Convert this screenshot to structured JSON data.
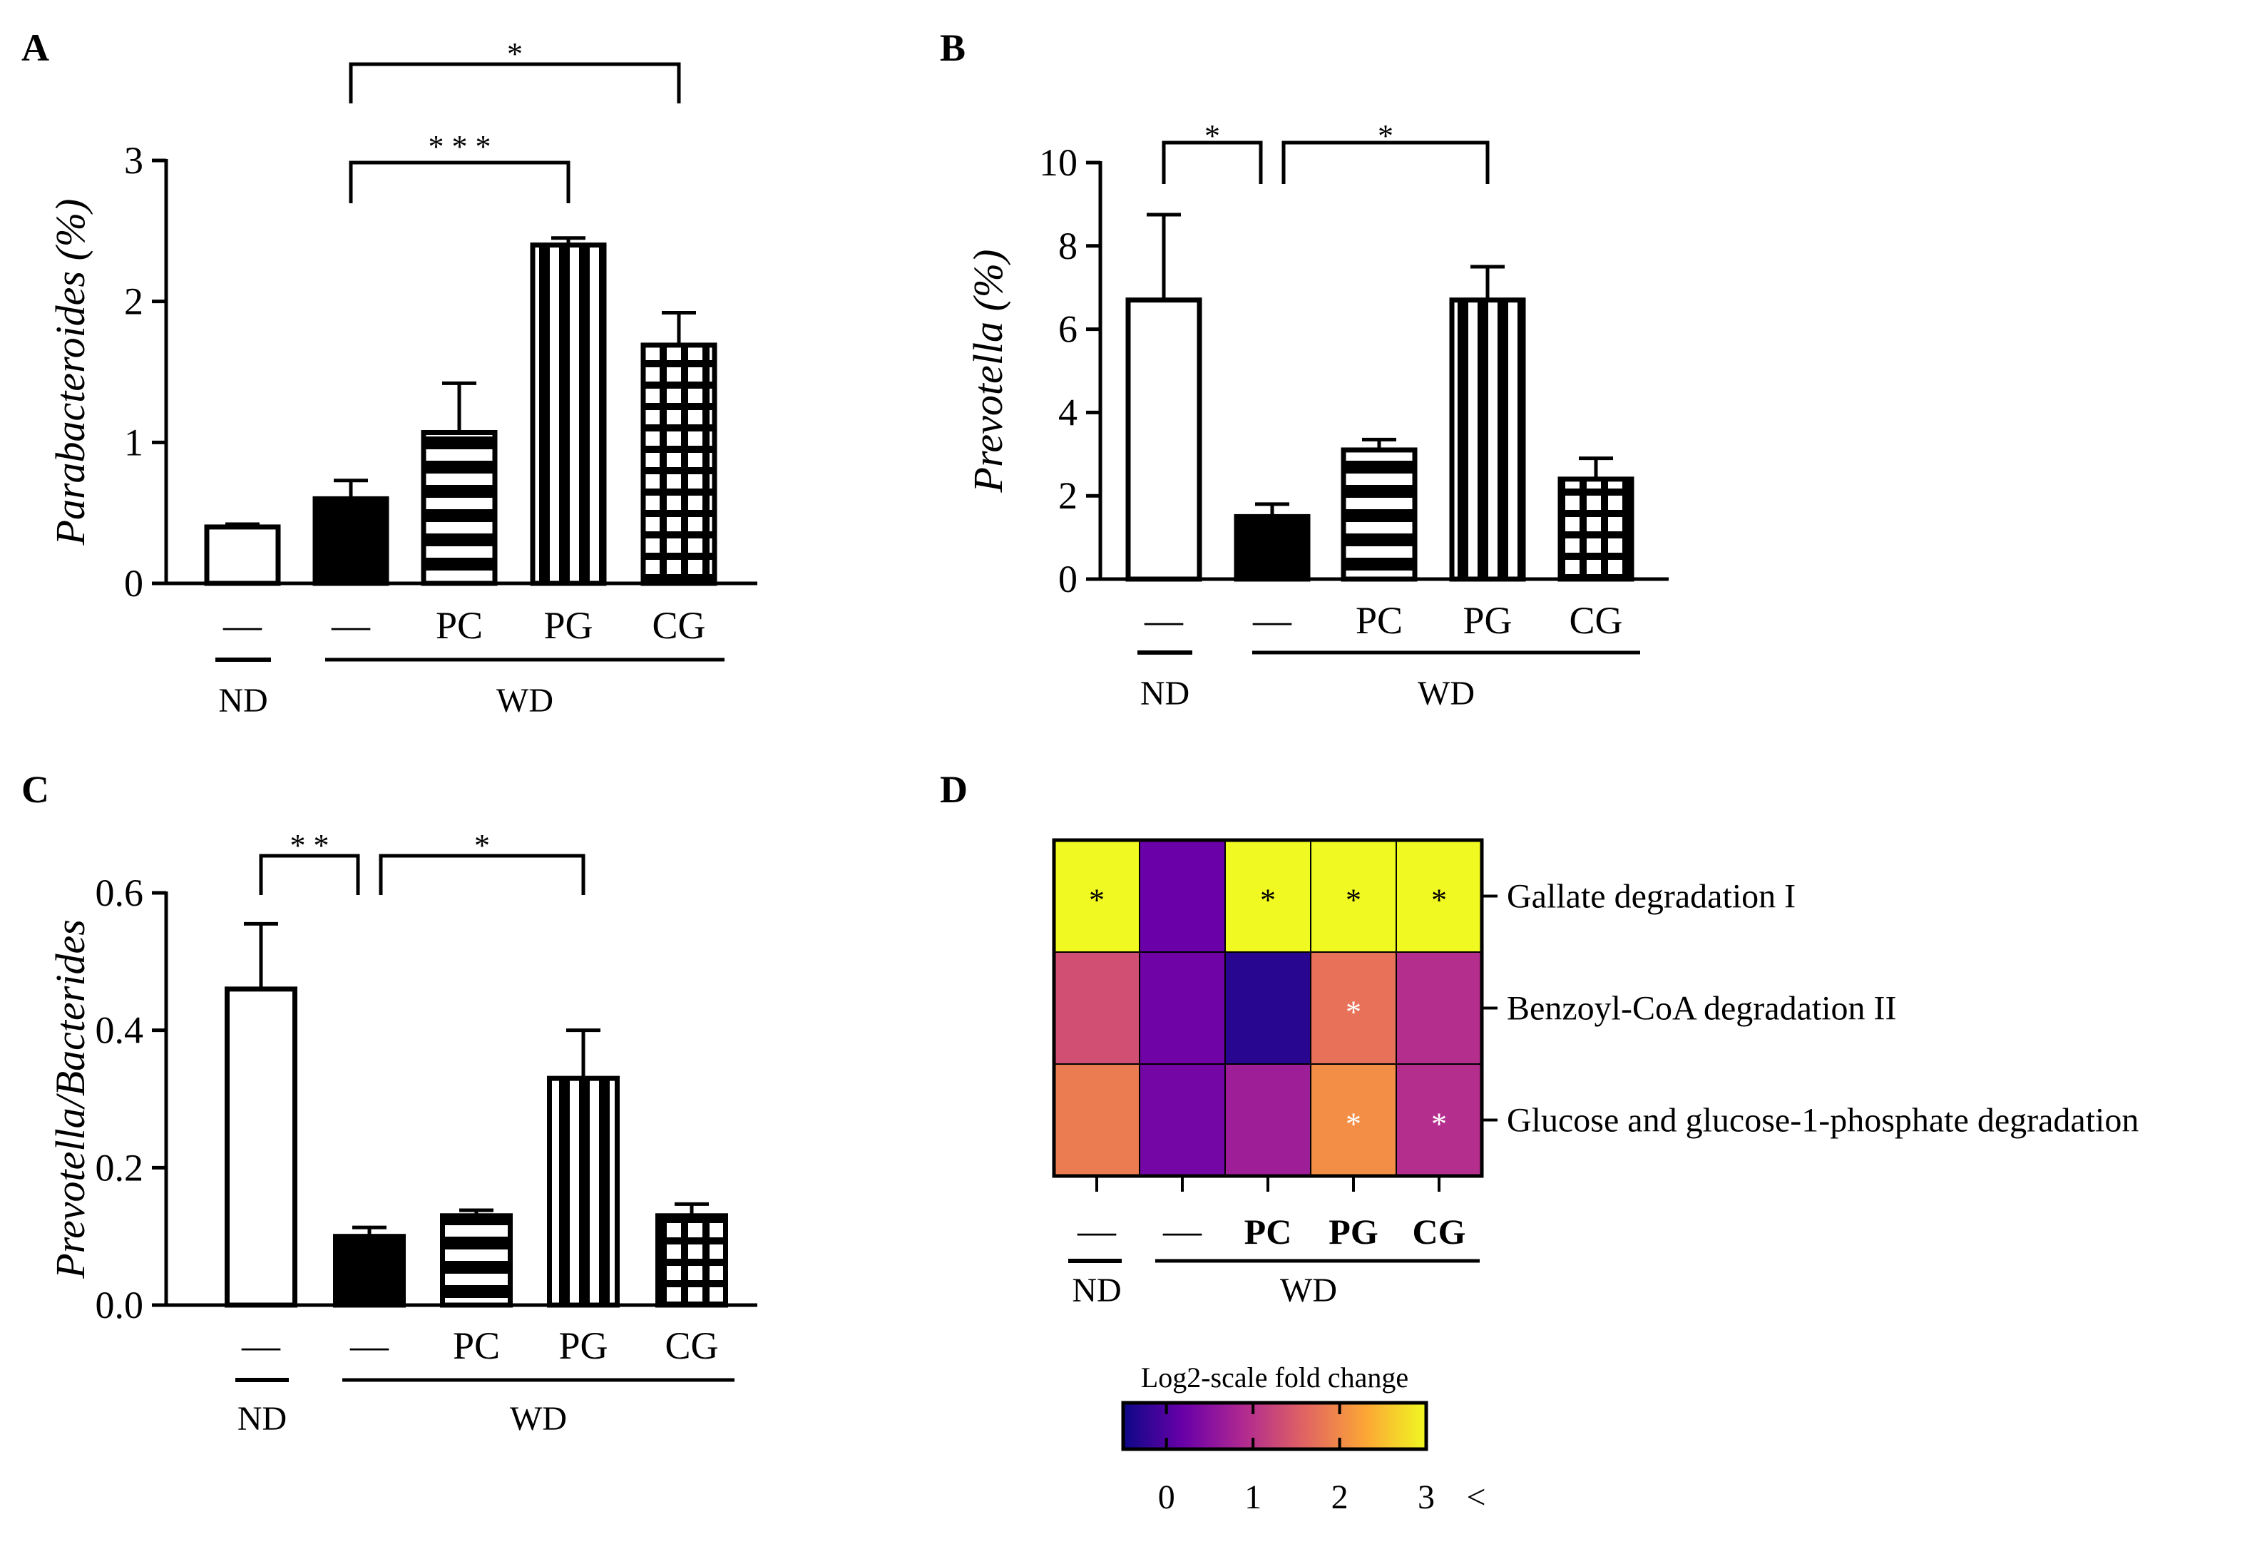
{
  "chart_data": [
    {
      "panel": "A",
      "type": "bar",
      "ylabel": "Parabacteroides (%)",
      "ylim": [
        0,
        3
      ],
      "yticks": [
        0,
        1,
        2,
        3
      ],
      "categories": [
        "—",
        "—",
        "PC",
        "PG",
        "CG"
      ],
      "groups": [
        {
          "label": "ND",
          "members": [
            0
          ]
        },
        {
          "label": "WD",
          "members": [
            1,
            2,
            3,
            4
          ]
        }
      ],
      "values": [
        0.4,
        0.6,
        1.07,
        2.4,
        1.69
      ],
      "errors": [
        0.02,
        0.13,
        0.35,
        0.05,
        0.23
      ],
      "patterns": [
        "open",
        "solid",
        "hstripes",
        "vstripes",
        "grid"
      ],
      "significance": [
        {
          "from": 1,
          "to": 3,
          "label": "* * *"
        },
        {
          "from": 1,
          "to": 4,
          "label": "*"
        }
      ]
    },
    {
      "panel": "B",
      "type": "bar",
      "ylabel": "Prevotella (%)",
      "ylim": [
        0,
        10
      ],
      "yticks": [
        0,
        2,
        4,
        6,
        8,
        10
      ],
      "categories": [
        "—",
        "—",
        "PC",
        "PG",
        "CG"
      ],
      "groups": [
        {
          "label": "ND",
          "members": [
            0
          ]
        },
        {
          "label": "WD",
          "members": [
            1,
            2,
            3,
            4
          ]
        }
      ],
      "values": [
        6.7,
        1.5,
        3.1,
        6.7,
        2.4
      ],
      "errors": [
        2.05,
        0.3,
        0.25,
        0.8,
        0.5
      ],
      "patterns": [
        "open",
        "solid",
        "hstripes",
        "vstripes",
        "grid"
      ],
      "significance": [
        {
          "from": 0,
          "to": 1,
          "label": "*"
        },
        {
          "from": 1,
          "to": 3,
          "label": "*"
        }
      ]
    },
    {
      "panel": "C",
      "type": "bar",
      "ylabel": "Prevotella/Bacterides",
      "ylim": [
        0,
        0.6
      ],
      "yticks": [
        "0.0",
        "0.2",
        "0.4",
        "0.6"
      ],
      "categories": [
        "—",
        "—",
        "PC",
        "PG",
        "CG"
      ],
      "groups": [
        {
          "label": "ND",
          "members": [
            0
          ]
        },
        {
          "label": "WD",
          "members": [
            1,
            2,
            3,
            4
          ]
        }
      ],
      "values": [
        0.46,
        0.1,
        0.13,
        0.33,
        0.13
      ],
      "errors": [
        0.095,
        0.013,
        0.008,
        0.07,
        0.017
      ],
      "patterns": [
        "open",
        "solid",
        "hstripes",
        "vstripes",
        "grid"
      ],
      "significance": [
        {
          "from": 0,
          "to": 1,
          "label": "* *"
        },
        {
          "from": 1,
          "to": 3,
          "label": "*"
        }
      ]
    },
    {
      "panel": "D",
      "type": "heatmap",
      "rows": [
        "Gallate degradation I",
        "Benzoyl-CoA degradation II",
        "Glucose and glucose-1-phosphate degradation"
      ],
      "columns": [
        "—",
        "—",
        "PC",
        "PG",
        "CG"
      ],
      "groups": [
        {
          "label": "ND",
          "members": [
            0
          ]
        },
        {
          "label": "WD",
          "members": [
            1,
            2,
            3,
            4
          ]
        }
      ],
      "values": [
        [
          3.0,
          0.2,
          3.0,
          3.0,
          3.0
        ],
        [
          1.35,
          0.25,
          -0.3,
          1.75,
          0.95
        ],
        [
          1.85,
          0.3,
          0.7,
          2.05,
          0.95
        ]
      ],
      "significant": [
        [
          true,
          false,
          true,
          true,
          true
        ],
        [
          false,
          false,
          false,
          true,
          false
        ],
        [
          false,
          false,
          false,
          true,
          true
        ]
      ],
      "star_label": "*",
      "colorbar": {
        "title": "Log2-scale fold change",
        "ticks": [
          "0",
          "1",
          "2",
          "3"
        ],
        "overflow_label": "<",
        "range": [
          -0.5,
          3.0
        ],
        "colors": [
          "#0d0887",
          "#6a00a8",
          "#b12a90",
          "#e16462",
          "#fca636",
          "#f0f921"
        ]
      }
    }
  ]
}
